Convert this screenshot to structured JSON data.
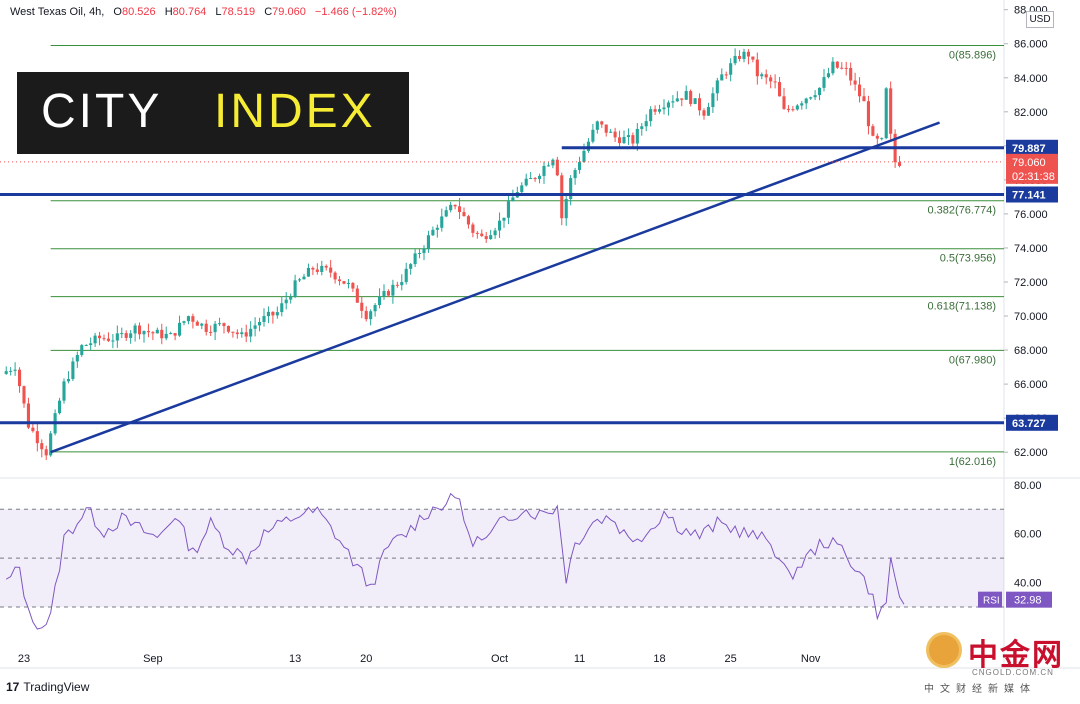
{
  "header": {
    "symbol": "West Texas Oil, 4h,",
    "open_label": "O",
    "open": "80.526",
    "high_label": "H",
    "high": "80.764",
    "low_label": "L",
    "low": "78.519",
    "close_label": "C",
    "close": "79.060",
    "change": "−1.466 (−1.82%)"
  },
  "logo": {
    "word1": "CITY",
    "word2": "INDEX"
  },
  "currency": "USD",
  "footer": {
    "brand": "TradingView",
    "brand_glyph": "17"
  },
  "watermark": {
    "title": "中金网",
    "url": "CNGOLD.COM.CN",
    "subtitle": "中文财经新媒体"
  },
  "colors": {
    "up": "#26a69a",
    "down": "#ef5350",
    "line": "#1a3a9e",
    "fib": "#3a8f3a",
    "rsi": "#7e57c2"
  },
  "chart_data": [
    {
      "type": "candlestick",
      "title": "West Texas Oil, 4h",
      "ylim": [
        60.6,
        88.1
      ],
      "y_ticks": [
        62,
        64,
        66,
        68,
        70,
        72,
        74,
        76,
        78,
        80,
        82,
        84,
        86,
        88
      ],
      "y_tick_labels": [
        "62.000",
        "64.000",
        "66.000",
        "68.000",
        "70.000",
        "72.000",
        "74.000",
        "76.000",
        "78.000",
        "80.000",
        "82.000",
        "84.000",
        "86.000",
        "88.000"
      ],
      "x_labels": [
        "23",
        "Sep",
        "13",
        "20",
        "Oct",
        "11",
        "18",
        "25",
        "Nov"
      ],
      "x_label_positions": [
        4,
        33,
        65,
        81,
        111,
        129,
        147,
        163,
        181
      ],
      "bars": 203,
      "price_path": [
        [
          0,
          66.6
        ],
        [
          3,
          67.1
        ],
        [
          6,
          63.6
        ],
        [
          10,
          62.0
        ],
        [
          14,
          66.0
        ],
        [
          18,
          68.2
        ],
        [
          22,
          68.7
        ],
        [
          26,
          68.7
        ],
        [
          30,
          69.3
        ],
        [
          34,
          69.0
        ],
        [
          38,
          68.8
        ],
        [
          42,
          70.0
        ],
        [
          46,
          69.3
        ],
        [
          50,
          69.5
        ],
        [
          54,
          68.8
        ],
        [
          58,
          69.7
        ],
        [
          62,
          70.2
        ],
        [
          66,
          71.8
        ],
        [
          70,
          72.8
        ],
        [
          74,
          72.6
        ],
        [
          78,
          71.8
        ],
        [
          82,
          70.1
        ],
        [
          86,
          71.2
        ],
        [
          90,
          72.2
        ],
        [
          94,
          73.8
        ],
        [
          98,
          75.4
        ],
        [
          102,
          76.6
        ],
        [
          106,
          75.0
        ],
        [
          108,
          74.6
        ],
        [
          112,
          75.5
        ],
        [
          116,
          77.4
        ],
        [
          120,
          78.2
        ],
        [
          124,
          79.4
        ],
        [
          125,
          78.5
        ],
        [
          126,
          75.8
        ],
        [
          128,
          78.0
        ],
        [
          130,
          79.2
        ],
        [
          134,
          81.3
        ],
        [
          138,
          80.5
        ],
        [
          142,
          80.3
        ],
        [
          146,
          82.1
        ],
        [
          150,
          82.7
        ],
        [
          154,
          83.0
        ],
        [
          158,
          82.0
        ],
        [
          162,
          84.1
        ],
        [
          166,
          85.3
        ],
        [
          168,
          85.4
        ],
        [
          170,
          84.2
        ],
        [
          174,
          83.6
        ],
        [
          176,
          82.0
        ],
        [
          180,
          82.7
        ],
        [
          184,
          83.4
        ],
        [
          187,
          84.7
        ],
        [
          190,
          84.4
        ],
        [
          194,
          82.5
        ],
        [
          196,
          80.3
        ],
        [
          198,
          80.2
        ],
        [
          199,
          83.2
        ],
        [
          200,
          80.5
        ],
        [
          201,
          79.06
        ]
      ],
      "last_close": 79.06,
      "countdown": "02:31:38",
      "fibonacci": [
        {
          "level": "0",
          "value": 85.896,
          "label": "0(85.896)"
        },
        {
          "level": "0.382",
          "value": 76.774,
          "label": "0.382(76.774)"
        },
        {
          "level": "0.5",
          "value": 73.956,
          "label": "0.5(73.956)"
        },
        {
          "level": "0.618",
          "value": 71.138,
          "label": "0.618(71.138)"
        },
        {
          "level": "0",
          "value": 67.98,
          "label": "0(67.980)"
        },
        {
          "level": "1",
          "value": 62.016,
          "label": "1(62.016)"
        }
      ],
      "horizontal_levels": [
        {
          "value": 79.887,
          "label": "79.887",
          "from_bar": 125
        },
        {
          "value": 77.141,
          "label": "77.141",
          "from_bar": 0
        },
        {
          "value": 63.727,
          "label": "63.727",
          "from_bar": 0
        }
      ],
      "trendline": {
        "from": [
          10,
          62.0
        ],
        "to": [
          201,
          80.9
        ]
      },
      "price_labels": [
        {
          "value": 79.06,
          "text": "79.060"
        }
      ]
    },
    {
      "type": "line",
      "title": "RSI",
      "series": [
        {
          "name": "RSI",
          "last_value": 32.98
        }
      ],
      "ylim": [
        14,
        82
      ],
      "y_ticks": [
        40,
        60,
        80
      ],
      "y_tick_labels": [
        "40.00",
        "60.00",
        "80.00"
      ],
      "bands": {
        "upper": 70,
        "middle": 50,
        "lower": 30
      },
      "values_path": [
        [
          0,
          40
        ],
        [
          3,
          46
        ],
        [
          5,
          27
        ],
        [
          8,
          22
        ],
        [
          10,
          26
        ],
        [
          13,
          58
        ],
        [
          16,
          65
        ],
        [
          18,
          70
        ],
        [
          22,
          61
        ],
        [
          26,
          66
        ],
        [
          30,
          62
        ],
        [
          34,
          58
        ],
        [
          38,
          68
        ],
        [
          42,
          52
        ],
        [
          46,
          64
        ],
        [
          50,
          55
        ],
        [
          54,
          50
        ],
        [
          58,
          60
        ],
        [
          62,
          64
        ],
        [
          66,
          68
        ],
        [
          70,
          69
        ],
        [
          74,
          60
        ],
        [
          78,
          49
        ],
        [
          82,
          38
        ],
        [
          86,
          55
        ],
        [
          90,
          60
        ],
        [
          94,
          68
        ],
        [
          98,
          72
        ],
        [
          102,
          75
        ],
        [
          104,
          58
        ],
        [
          108,
          57
        ],
        [
          112,
          66
        ],
        [
          116,
          70
        ],
        [
          120,
          68
        ],
        [
          124,
          71
        ],
        [
          126,
          42
        ],
        [
          128,
          56
        ],
        [
          132,
          65
        ],
        [
          136,
          67
        ],
        [
          140,
          58
        ],
        [
          144,
          60
        ],
        [
          148,
          69
        ],
        [
          152,
          62
        ],
        [
          156,
          59
        ],
        [
          160,
          64
        ],
        [
          164,
          62
        ],
        [
          168,
          59
        ],
        [
          172,
          57
        ],
        [
          176,
          42
        ],
        [
          180,
          50
        ],
        [
          184,
          57
        ],
        [
          188,
          54
        ],
        [
          192,
          44
        ],
        [
          194,
          38
        ],
        [
          196,
          28
        ],
        [
          198,
          30
        ],
        [
          199,
          51
        ],
        [
          201,
          32.98
        ]
      ],
      "badge_label": "RSI",
      "badge_value": "32.98"
    }
  ]
}
